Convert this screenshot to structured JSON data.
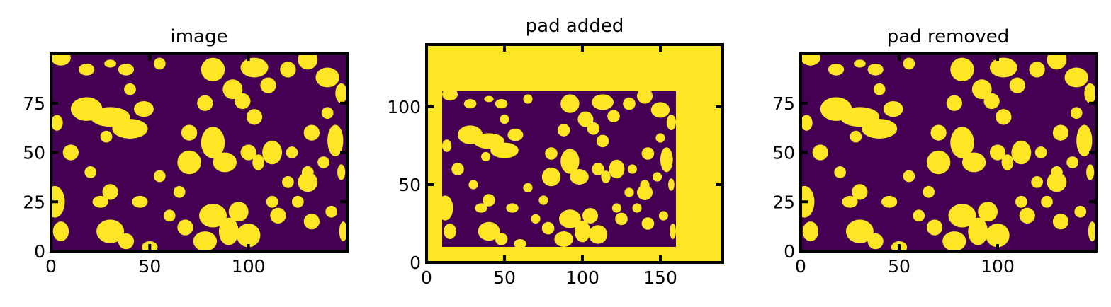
{
  "colors": {
    "background": "#440154",
    "foreground": "#fde725"
  },
  "chart_data": [
    {
      "type": "heatmap",
      "title": "image",
      "xlim": [
        0,
        150
      ],
      "ylim": [
        0,
        100
      ],
      "xticks": [
        "0",
        "50",
        "100"
      ],
      "yticks": [
        "0",
        "25",
        "50",
        "75"
      ],
      "xtick_values": [
        0,
        50,
        100
      ],
      "ytick_values": [
        0,
        25,
        50,
        75
      ],
      "grid": false,
      "blobs": [
        [
          5,
          98,
          5,
          4
        ],
        [
          18,
          92,
          4,
          3
        ],
        [
          30,
          95,
          3,
          2
        ],
        [
          38,
          92,
          4,
          3
        ],
        [
          55,
          95,
          3,
          3
        ],
        [
          82,
          92,
          6,
          6
        ],
        [
          92,
          82,
          5,
          5
        ],
        [
          103,
          93,
          7,
          5
        ],
        [
          110,
          84,
          4,
          4
        ],
        [
          120,
          92,
          4,
          4
        ],
        [
          130,
          97,
          5,
          5
        ],
        [
          140,
          88,
          6,
          5
        ],
        [
          147,
          80,
          3,
          5
        ],
        [
          18,
          72,
          8,
          6
        ],
        [
          30,
          68,
          10,
          5
        ],
        [
          40,
          62,
          9,
          5
        ],
        [
          47,
          72,
          5,
          4
        ],
        [
          3,
          65,
          3,
          4
        ],
        [
          10,
          50,
          4,
          4
        ],
        [
          28,
          58,
          3,
          3
        ],
        [
          78,
          75,
          4,
          4
        ],
        [
          82,
          55,
          6,
          8
        ],
        [
          88,
          45,
          6,
          5
        ],
        [
          100,
          50,
          4,
          4
        ],
        [
          103,
          68,
          4,
          4
        ],
        [
          97,
          76,
          4,
          4
        ],
        [
          112,
          50,
          5,
          6
        ],
        [
          122,
          50,
          3,
          3
        ],
        [
          132,
          60,
          4,
          4
        ],
        [
          138,
          45,
          3,
          3
        ],
        [
          144,
          56,
          4,
          8
        ],
        [
          70,
          45,
          6,
          6
        ],
        [
          65,
          30,
          3,
          3
        ],
        [
          55,
          38,
          3,
          3
        ],
        [
          105,
          45,
          3,
          4
        ],
        [
          120,
          35,
          3,
          3
        ],
        [
          130,
          40,
          3,
          3
        ],
        [
          2,
          25,
          5,
          8
        ],
        [
          5,
          10,
          4,
          5
        ],
        [
          25,
          25,
          4,
          3
        ],
        [
          30,
          30,
          4,
          4
        ],
        [
          45,
          25,
          4,
          3
        ],
        [
          60,
          18,
          3,
          3
        ],
        [
          68,
          12,
          4,
          4
        ],
        [
          82,
          18,
          7,
          6
        ],
        [
          90,
          10,
          5,
          7
        ],
        [
          95,
          20,
          5,
          5
        ],
        [
          78,
          5,
          6,
          5
        ],
        [
          100,
          8,
          6,
          6
        ],
        [
          115,
          18,
          4,
          4
        ],
        [
          125,
          25,
          3,
          3
        ],
        [
          132,
          15,
          4,
          4
        ],
        [
          142,
          20,
          3,
          3
        ],
        [
          148,
          10,
          2,
          5
        ],
        [
          30,
          10,
          7,
          6
        ],
        [
          38,
          5,
          4,
          4
        ],
        [
          50,
          2,
          4,
          3
        ],
        [
          130,
          35,
          5,
          5
        ],
        [
          147,
          40,
          2,
          4
        ],
        [
          20,
          40,
          3,
          3
        ],
        [
          40,
          82,
          3,
          3
        ],
        [
          70,
          60,
          4,
          4
        ],
        [
          112,
          25,
          3,
          3
        ],
        [
          140,
          70,
          3,
          3
        ]
      ]
    },
    {
      "type": "heatmap",
      "title": "pad added",
      "xlim": [
        0,
        190
      ],
      "ylim": [
        0,
        140
      ],
      "xticks": [
        "0",
        "50",
        "100",
        "150"
      ],
      "yticks": [
        "0",
        "50",
        "100"
      ],
      "xtick_values": [
        0,
        50,
        100,
        150
      ],
      "ytick_values": [
        0,
        50,
        100
      ],
      "grid": false,
      "pad": {
        "x0": 10,
        "x1": 160,
        "y0": 10,
        "y1": 110
      }
    },
    {
      "type": "heatmap",
      "title": "pad removed",
      "xlim": [
        0,
        150
      ],
      "ylim": [
        0,
        100
      ],
      "xticks": [
        "0",
        "50",
        "100"
      ],
      "yticks": [
        "0",
        "25",
        "50",
        "75"
      ],
      "xtick_values": [
        0,
        50,
        100
      ],
      "ytick_values": [
        0,
        25,
        50,
        75
      ],
      "grid": false
    }
  ]
}
